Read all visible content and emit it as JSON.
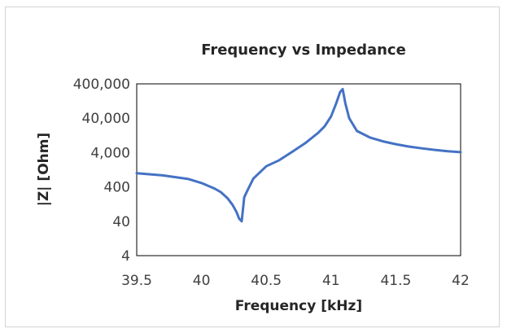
{
  "chart_data": {
    "type": "line",
    "title": "Frequency vs Impedance",
    "xlabel": "Frequency [kHz]",
    "ylabel": "|Z| [Ohm]",
    "y_scale": "log",
    "xlim": [
      39.5,
      42
    ],
    "ylim": [
      4,
      400000
    ],
    "x_ticks": [
      39.5,
      40,
      40.5,
      41,
      41.5,
      42
    ],
    "x_tick_labels": [
      "39.5",
      "40",
      "40.5",
      "41",
      "41.5",
      "42"
    ],
    "y_ticks": [
      4,
      40,
      400,
      4000,
      40000,
      400000
    ],
    "y_tick_labels": [
      "4",
      "40",
      "400",
      "4,000",
      "40,000",
      "400,000"
    ],
    "grid": false,
    "legend": "none",
    "series_color": "#4472C4",
    "series": [
      {
        "x": [
          39.5,
          39.7,
          39.9,
          40.0,
          40.1,
          40.15,
          40.2,
          40.24,
          40.27,
          40.29,
          40.31,
          40.33,
          40.35,
          40.4,
          40.5,
          40.6,
          40.7,
          40.8,
          40.9,
          40.95,
          41.0,
          41.04,
          41.07,
          41.09,
          41.11,
          41.14,
          41.2,
          41.3,
          41.4,
          41.5,
          41.6,
          41.7,
          41.8,
          41.9,
          42.0
        ],
        "y": [
          1000,
          870,
          680,
          520,
          360,
          280,
          190,
          120,
          75,
          48,
          40,
          200,
          290,
          700,
          1600,
          2400,
          4200,
          7500,
          15000,
          23000,
          45000,
          110000,
          230000,
          280000,
          110000,
          40000,
          17000,
          11000,
          8500,
          7000,
          6000,
          5300,
          4800,
          4400,
          4100
        ]
      }
    ]
  }
}
